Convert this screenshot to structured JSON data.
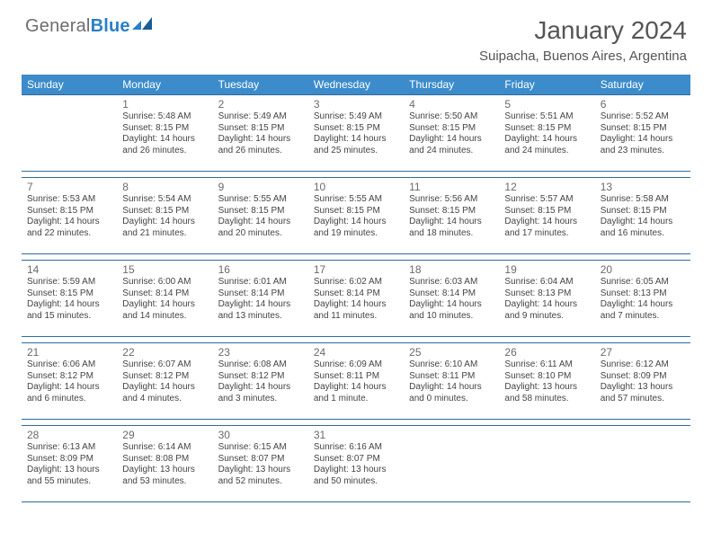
{
  "brand": {
    "part1": "General",
    "part2": "Blue"
  },
  "title": "January 2024",
  "location": "Suipacha, Buenos Aires, Argentina",
  "colors": {
    "header_bg": "#3c8ccb",
    "rule": "#2e6b9e",
    "text": "#444444",
    "title": "#555555",
    "logo_gray": "#6d6d6d",
    "logo_blue": "#2b7fc5"
  },
  "typography": {
    "title_fontsize": 28,
    "location_fontsize": 15,
    "dow_fontsize": 12,
    "daynum_fontsize": 12,
    "info_fontsize": 10
  },
  "days_of_week": [
    "Sunday",
    "Monday",
    "Tuesday",
    "Wednesday",
    "Thursday",
    "Friday",
    "Saturday"
  ],
  "weeks": [
    [
      null,
      {
        "n": "1",
        "sunrise": "5:48 AM",
        "sunset": "8:15 PM",
        "dl": "14 hours and 26 minutes."
      },
      {
        "n": "2",
        "sunrise": "5:49 AM",
        "sunset": "8:15 PM",
        "dl": "14 hours and 26 minutes."
      },
      {
        "n": "3",
        "sunrise": "5:49 AM",
        "sunset": "8:15 PM",
        "dl": "14 hours and 25 minutes."
      },
      {
        "n": "4",
        "sunrise": "5:50 AM",
        "sunset": "8:15 PM",
        "dl": "14 hours and 24 minutes."
      },
      {
        "n": "5",
        "sunrise": "5:51 AM",
        "sunset": "8:15 PM",
        "dl": "14 hours and 24 minutes."
      },
      {
        "n": "6",
        "sunrise": "5:52 AM",
        "sunset": "8:15 PM",
        "dl": "14 hours and 23 minutes."
      }
    ],
    [
      {
        "n": "7",
        "sunrise": "5:53 AM",
        "sunset": "8:15 PM",
        "dl": "14 hours and 22 minutes."
      },
      {
        "n": "8",
        "sunrise": "5:54 AM",
        "sunset": "8:15 PM",
        "dl": "14 hours and 21 minutes."
      },
      {
        "n": "9",
        "sunrise": "5:55 AM",
        "sunset": "8:15 PM",
        "dl": "14 hours and 20 minutes."
      },
      {
        "n": "10",
        "sunrise": "5:55 AM",
        "sunset": "8:15 PM",
        "dl": "14 hours and 19 minutes."
      },
      {
        "n": "11",
        "sunrise": "5:56 AM",
        "sunset": "8:15 PM",
        "dl": "14 hours and 18 minutes."
      },
      {
        "n": "12",
        "sunrise": "5:57 AM",
        "sunset": "8:15 PM",
        "dl": "14 hours and 17 minutes."
      },
      {
        "n": "13",
        "sunrise": "5:58 AM",
        "sunset": "8:15 PM",
        "dl": "14 hours and 16 minutes."
      }
    ],
    [
      {
        "n": "14",
        "sunrise": "5:59 AM",
        "sunset": "8:15 PM",
        "dl": "14 hours and 15 minutes."
      },
      {
        "n": "15",
        "sunrise": "6:00 AM",
        "sunset": "8:14 PM",
        "dl": "14 hours and 14 minutes."
      },
      {
        "n": "16",
        "sunrise": "6:01 AM",
        "sunset": "8:14 PM",
        "dl": "14 hours and 13 minutes."
      },
      {
        "n": "17",
        "sunrise": "6:02 AM",
        "sunset": "8:14 PM",
        "dl": "14 hours and 11 minutes."
      },
      {
        "n": "18",
        "sunrise": "6:03 AM",
        "sunset": "8:14 PM",
        "dl": "14 hours and 10 minutes."
      },
      {
        "n": "19",
        "sunrise": "6:04 AM",
        "sunset": "8:13 PM",
        "dl": "14 hours and 9 minutes."
      },
      {
        "n": "20",
        "sunrise": "6:05 AM",
        "sunset": "8:13 PM",
        "dl": "14 hours and 7 minutes."
      }
    ],
    [
      {
        "n": "21",
        "sunrise": "6:06 AM",
        "sunset": "8:12 PM",
        "dl": "14 hours and 6 minutes."
      },
      {
        "n": "22",
        "sunrise": "6:07 AM",
        "sunset": "8:12 PM",
        "dl": "14 hours and 4 minutes."
      },
      {
        "n": "23",
        "sunrise": "6:08 AM",
        "sunset": "8:12 PM",
        "dl": "14 hours and 3 minutes."
      },
      {
        "n": "24",
        "sunrise": "6:09 AM",
        "sunset": "8:11 PM",
        "dl": "14 hours and 1 minute."
      },
      {
        "n": "25",
        "sunrise": "6:10 AM",
        "sunset": "8:11 PM",
        "dl": "14 hours and 0 minutes."
      },
      {
        "n": "26",
        "sunrise": "6:11 AM",
        "sunset": "8:10 PM",
        "dl": "13 hours and 58 minutes."
      },
      {
        "n": "27",
        "sunrise": "6:12 AM",
        "sunset": "8:09 PM",
        "dl": "13 hours and 57 minutes."
      }
    ],
    [
      {
        "n": "28",
        "sunrise": "6:13 AM",
        "sunset": "8:09 PM",
        "dl": "13 hours and 55 minutes."
      },
      {
        "n": "29",
        "sunrise": "6:14 AM",
        "sunset": "8:08 PM",
        "dl": "13 hours and 53 minutes."
      },
      {
        "n": "30",
        "sunrise": "6:15 AM",
        "sunset": "8:07 PM",
        "dl": "13 hours and 52 minutes."
      },
      {
        "n": "31",
        "sunrise": "6:16 AM",
        "sunset": "8:07 PM",
        "dl": "13 hours and 50 minutes."
      },
      null,
      null,
      null
    ]
  ],
  "labels": {
    "sunrise": "Sunrise:",
    "sunset": "Sunset:",
    "daylight": "Daylight:"
  }
}
